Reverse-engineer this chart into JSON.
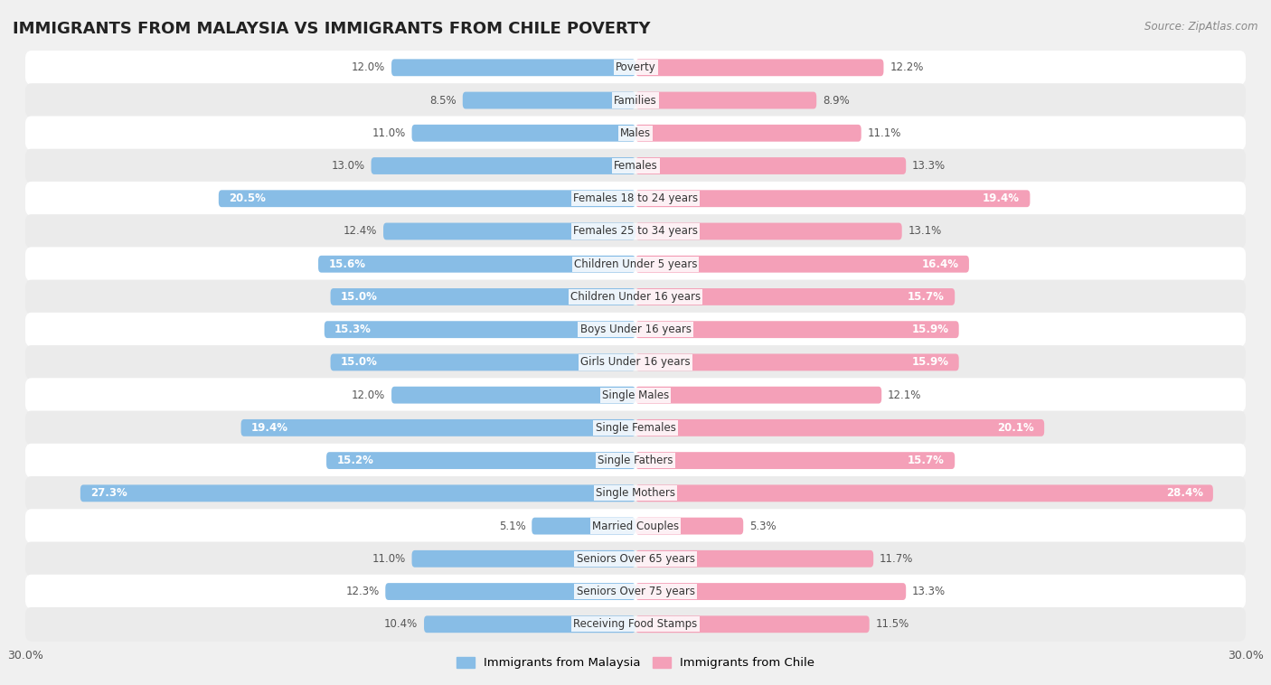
{
  "title": "IMMIGRANTS FROM MALAYSIA VS IMMIGRANTS FROM CHILE POVERTY",
  "source": "Source: ZipAtlas.com",
  "categories": [
    "Poverty",
    "Families",
    "Males",
    "Females",
    "Females 18 to 24 years",
    "Females 25 to 34 years",
    "Children Under 5 years",
    "Children Under 16 years",
    "Boys Under 16 years",
    "Girls Under 16 years",
    "Single Males",
    "Single Females",
    "Single Fathers",
    "Single Mothers",
    "Married Couples",
    "Seniors Over 65 years",
    "Seniors Over 75 years",
    "Receiving Food Stamps"
  ],
  "malaysia_values": [
    12.0,
    8.5,
    11.0,
    13.0,
    20.5,
    12.4,
    15.6,
    15.0,
    15.3,
    15.0,
    12.0,
    19.4,
    15.2,
    27.3,
    5.1,
    11.0,
    12.3,
    10.4
  ],
  "chile_values": [
    12.2,
    8.9,
    11.1,
    13.3,
    19.4,
    13.1,
    16.4,
    15.7,
    15.9,
    15.9,
    12.1,
    20.1,
    15.7,
    28.4,
    5.3,
    11.7,
    13.3,
    11.5
  ],
  "malaysia_color": "#88bde6",
  "chile_color": "#f4a0b8",
  "malaysia_label": "Immigrants from Malaysia",
  "chile_label": "Immigrants from Chile",
  "background_color": "#f0f0f0",
  "row_colors": [
    "#ffffff",
    "#ebebeb"
  ],
  "xlim": 30.0,
  "bar_height": 0.52,
  "title_fontsize": 13,
  "value_fontsize": 8.5,
  "category_fontsize": 8.5,
  "inside_label_threshold": 15.0
}
